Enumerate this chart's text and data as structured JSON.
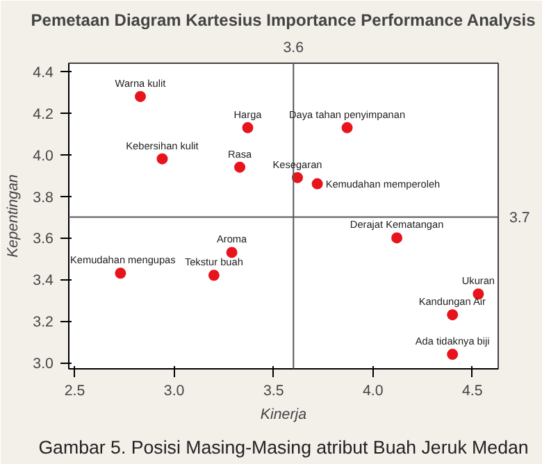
{
  "chart_data": {
    "type": "scatter",
    "title": "Pemetaan Diagram Kartesius Importance Performance Analysis",
    "xlabel": "Kinerja",
    "ylabel": "Kepentingan",
    "x": [
      2.83,
      2.94,
      3.37,
      3.33,
      3.62,
      3.87,
      3.72,
      3.29,
      2.73,
      3.2,
      4.12,
      4.53,
      4.4,
      4.4
    ],
    "values": [
      4.28,
      3.98,
      4.13,
      3.94,
      3.89,
      4.13,
      3.86,
      3.53,
      3.43,
      3.42,
      3.6,
      3.33,
      3.23,
      3.04
    ],
    "value_labels": [
      "Warna kulit",
      "Kebersihan kulit",
      "Harga",
      "Rasa",
      "Kesegaran",
      "Daya tahan penyimpanan",
      "Kemudahan memperoleh",
      "Aroma",
      "Kemudahan mengupas",
      "Tekstur buah",
      "Derajat Kematangan",
      "Ukuran",
      "Kandungan Air",
      "Ada tidaknya biji"
    ],
    "color": "#e8141c",
    "marker": "circle",
    "grid": false,
    "xlim": [
      2.47,
      4.63
    ],
    "ylim": [
      2.97,
      4.44
    ],
    "xticks": [
      2.5,
      {
        "value": 3,
        "label": "3.0"
      },
      3.5,
      {
        "value": 4,
        "label": "4.0"
      },
      4.5
    ],
    "yticks": [
      {
        "value": 3,
        "label": "3.0"
      },
      3.2,
      3.4,
      3.6,
      3.8,
      {
        "value": 4,
        "label": "4.0"
      },
      4.2,
      4.4
    ],
    "ref_lines": [
      {
        "axis": "x",
        "value": 3.6,
        "label": "3.6"
      },
      {
        "axis": "y",
        "value": 3.7,
        "label": "3.7"
      }
    ],
    "annotations": [
      "Gambar 5. Posisi Masing-Masing atribut Buah Jeruk Medan"
    ]
  }
}
